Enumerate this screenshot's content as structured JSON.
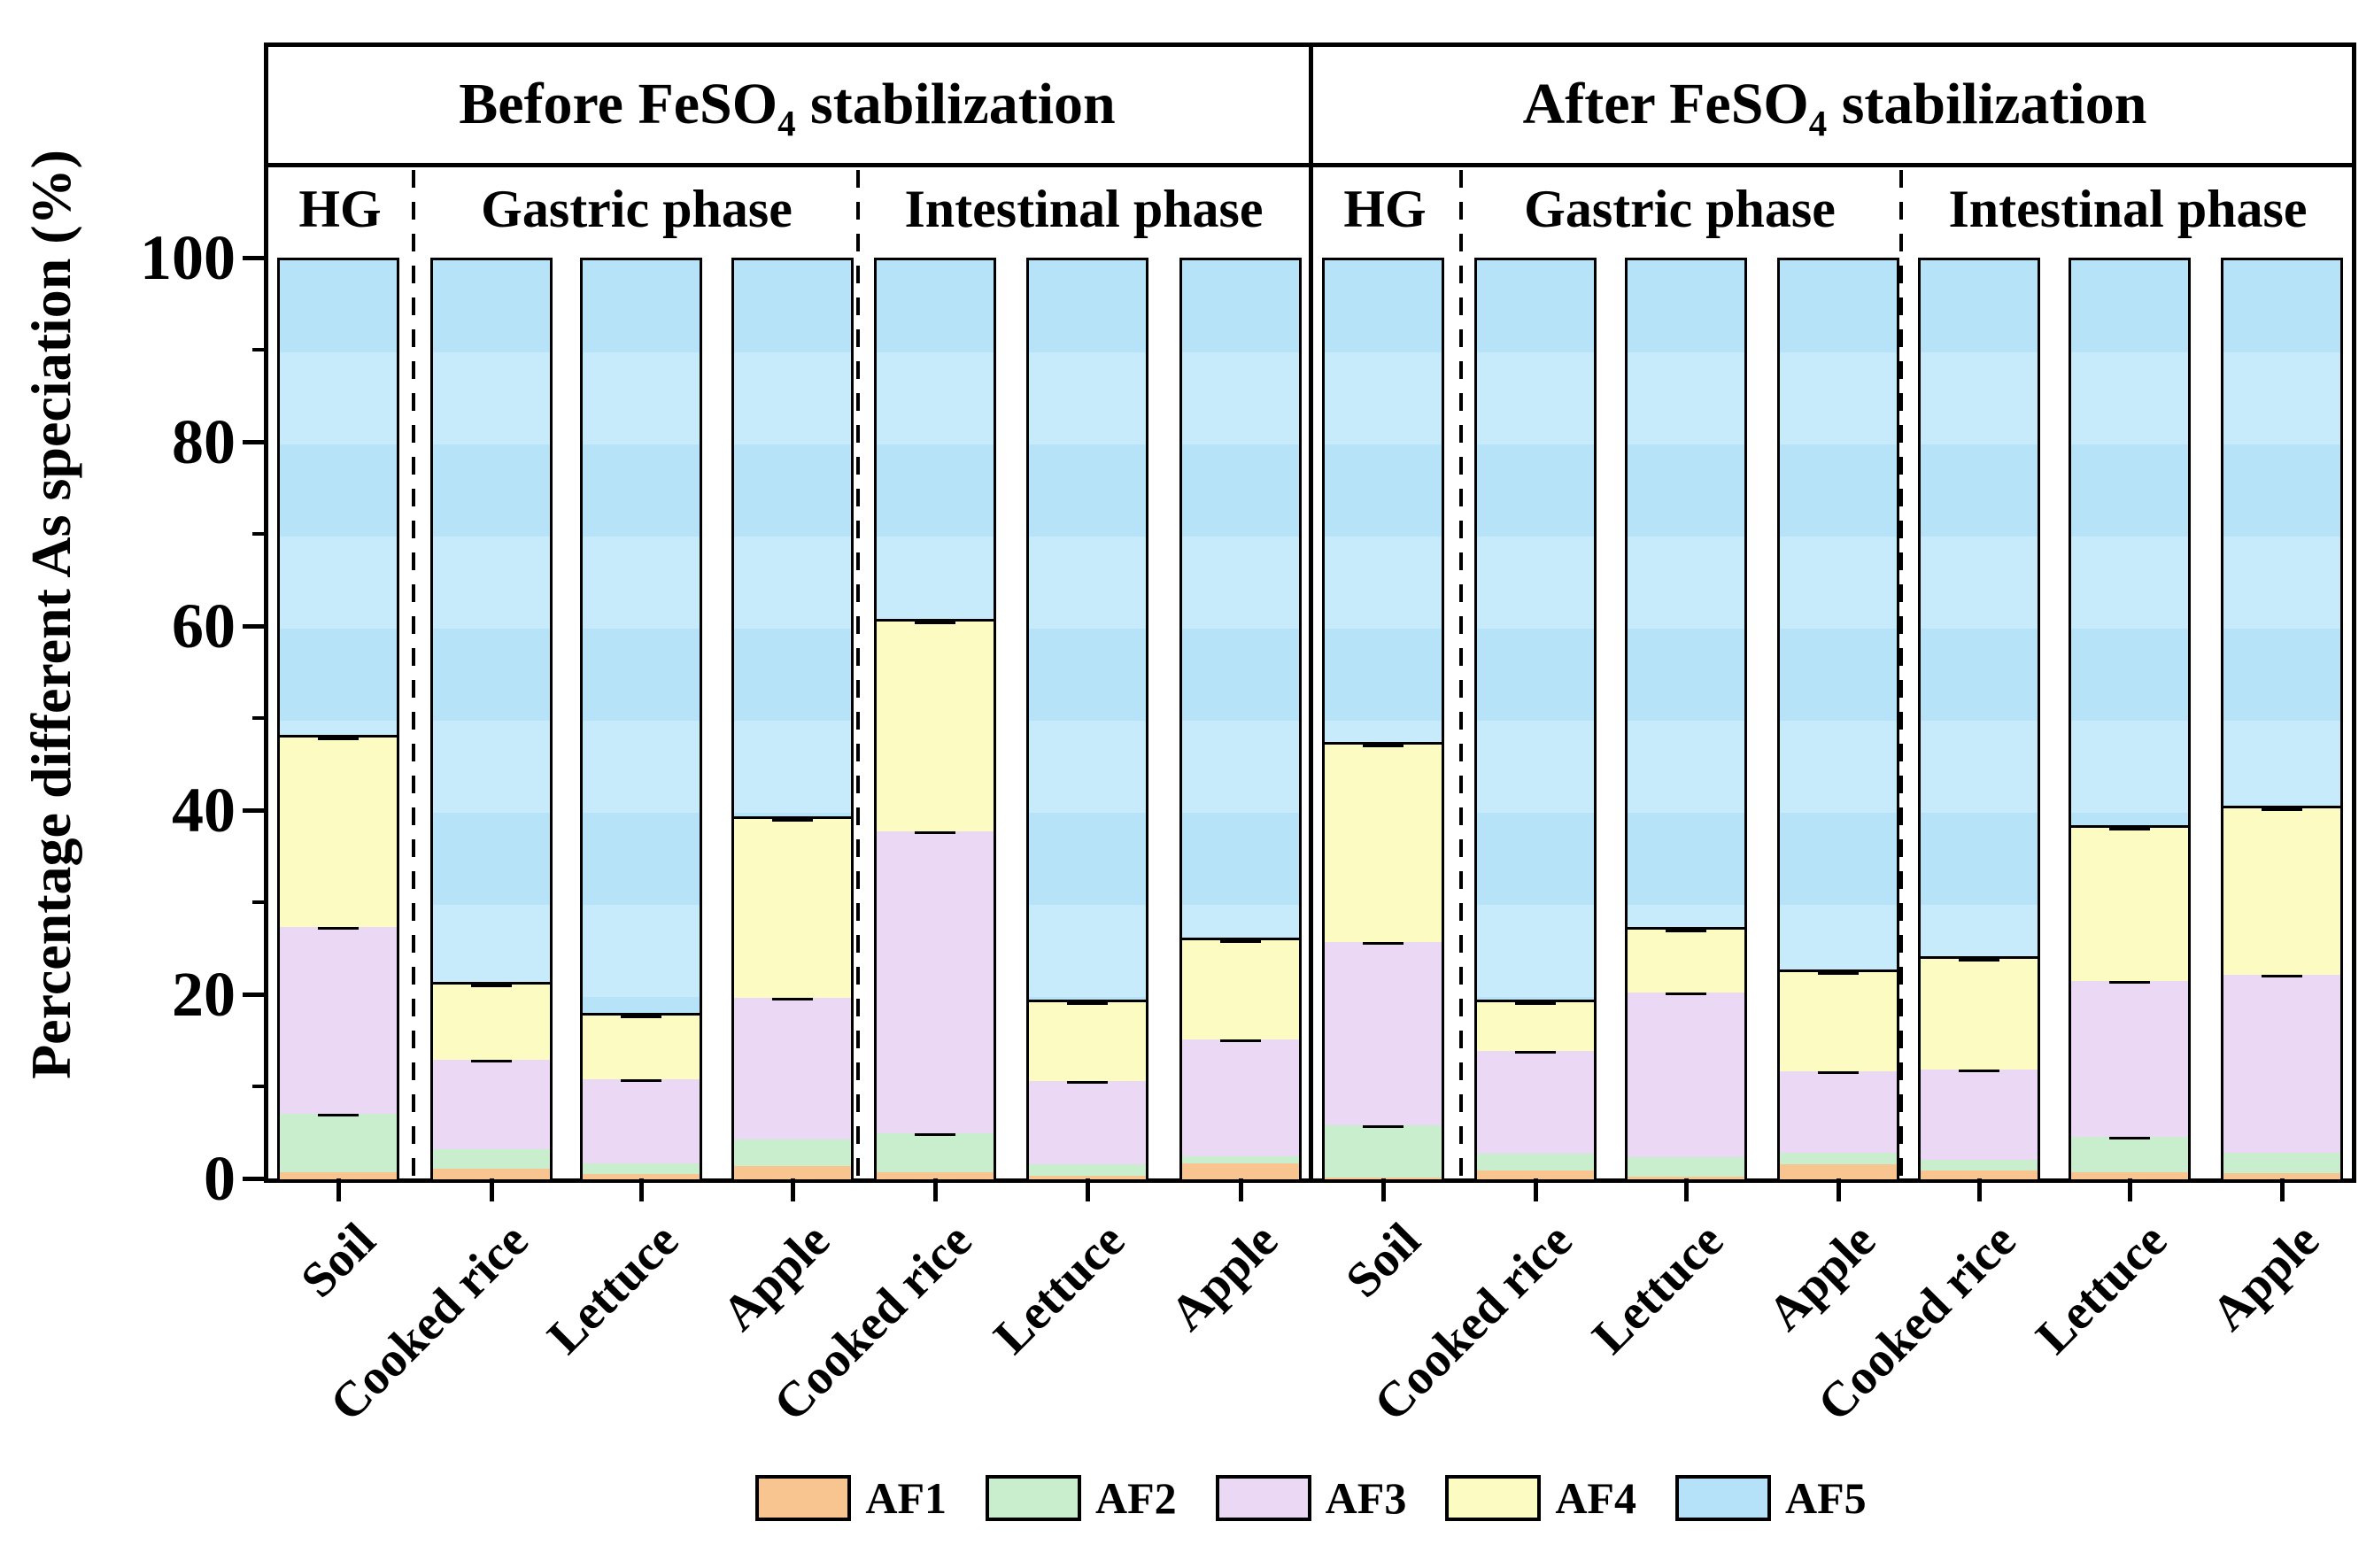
{
  "figure": {
    "y_axis_label": "Percentage different As speciation (%)"
  },
  "panels": [
    {
      "title_prefix": "Before FeSO",
      "title_sub": "4",
      "title_suffix": " stabilization",
      "sections": [
        "HG",
        "Gastric phase",
        "Intestinal phase"
      ]
    },
    {
      "title_prefix": "After FeSO",
      "title_sub": "4",
      "title_suffix": " stabilization",
      "sections": [
        "HG",
        "Gastric phase",
        "Intestinal phase"
      ]
    }
  ],
  "legend": [
    {
      "label": "AF1",
      "color": "#F8C48F"
    },
    {
      "label": "AF2",
      "color": "#C9EECD"
    },
    {
      "label": "AF3",
      "color": "#EAD8F5"
    },
    {
      "label": "AF4",
      "color": "#FCFBC1"
    },
    {
      "label": "AF5",
      "color": "#B5E2F8"
    }
  ],
  "chart_data": {
    "type": "bar",
    "stacked": true,
    "ylabel": "Percentage different As speciation (%)",
    "ylim": [
      0,
      100
    ],
    "y_major_ticks": [
      0,
      20,
      40,
      60,
      80,
      100
    ],
    "y_minor_ticks": [
      10,
      30,
      50,
      70,
      90
    ],
    "grid": false,
    "legend_position": "bottom",
    "panel_titles": [
      "Before FeSO4 stabilization",
      "After FeSO4 stabilization"
    ],
    "phase_sections": [
      "HG",
      "Gastric phase",
      "Intestinal phase"
    ],
    "categories": [
      "Soil",
      "Cooked rice",
      "Lettuce",
      "Apple",
      "Cooked rice",
      "Lettuce",
      "Apple",
      "Soil",
      "Cooked rice",
      "Lettuce",
      "Apple",
      "Cooked rice",
      "Lettuce",
      "Apple"
    ],
    "bar_panels": [
      "Before",
      "Before",
      "Before",
      "Before",
      "Before",
      "Before",
      "Before",
      "After",
      "After",
      "After",
      "After",
      "After",
      "After",
      "After"
    ],
    "bar_phases": [
      "HG",
      "Gastric phase",
      "Gastric phase",
      "Gastric phase",
      "Intestinal phase",
      "Intestinal phase",
      "Intestinal phase",
      "HG",
      "Gastric phase",
      "Gastric phase",
      "Gastric phase",
      "Intestinal phase",
      "Intestinal phase",
      "Intestinal phase"
    ],
    "series": [
      {
        "name": "AF1",
        "color": "#F8C48F",
        "values": [
          0.8,
          1.2,
          0.6,
          1.4,
          0.8,
          0.4,
          1.7,
          0.2,
          1.0,
          0.3,
          1.6,
          1.0,
          0.8,
          0.7
        ]
      },
      {
        "name": "AF2",
        "color": "#C9EECD",
        "values": [
          6.3,
          2.1,
          1.1,
          2.9,
          4.2,
          1.2,
          0.8,
          5.7,
          1.8,
          2.1,
          1.3,
          1.1,
          3.8,
          2.2
        ]
      },
      {
        "name": "AF3",
        "color": "#EAD8F5",
        "values": [
          20.3,
          9.7,
          9.2,
          15.4,
          32.8,
          9.1,
          12.7,
          19.9,
          11.1,
          17.9,
          8.8,
          9.8,
          16.9,
          19.3
        ]
      },
      {
        "name": "AF4",
        "color": "#FCFBC1",
        "values": [
          20.6,
          8.2,
          6.9,
          19.4,
          22.8,
          8.5,
          10.8,
          21.4,
          5.3,
          6.8,
          10.8,
          12.0,
          16.7,
          18.1
        ]
      },
      {
        "name": "AF5",
        "color": "#B5E2F8",
        "values": [
          52.0,
          78.8,
          82.2,
          60.9,
          39.4,
          80.8,
          74.0,
          52.8,
          80.8,
          72.9,
          77.5,
          76.1,
          61.8,
          59.7
        ]
      }
    ]
  }
}
